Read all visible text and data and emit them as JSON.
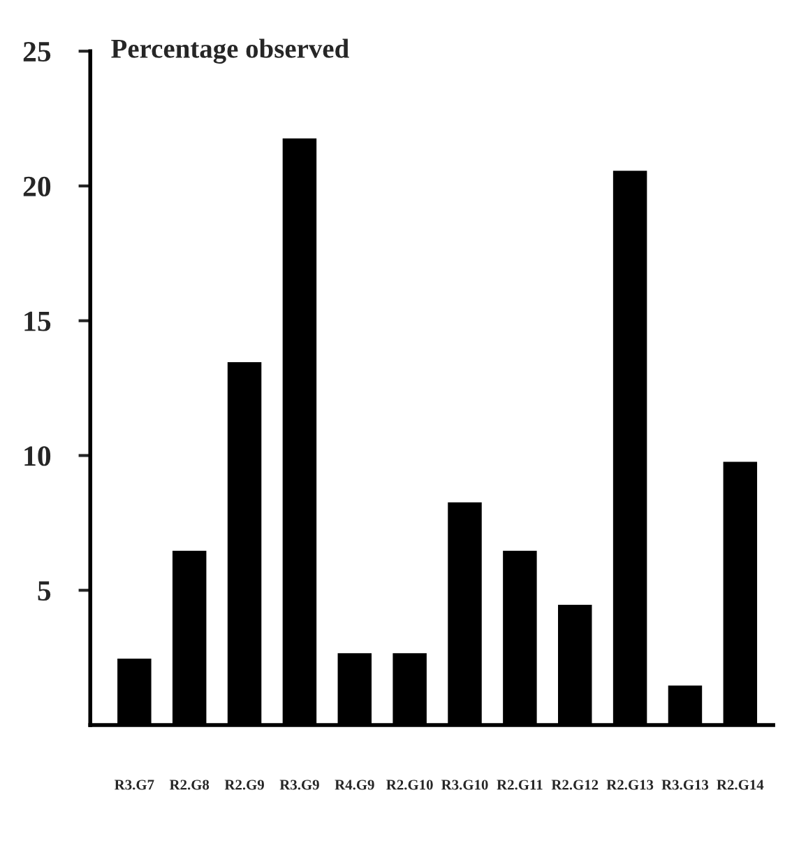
{
  "chart_data": {
    "type": "bar",
    "ylabel": "Percentage observed",
    "categories": [
      "R3.G7",
      "R2.G8",
      "R2.G9",
      "R3.G9",
      "R4.G9",
      "R2.G10",
      "R3.G10",
      "R2.G11",
      "R2.G12",
      "R2.G13",
      "R3.G13",
      "R2.G14"
    ],
    "values": [
      2.5,
      6.5,
      13.5,
      21.8,
      2.7,
      2.7,
      8.3,
      6.5,
      4.5,
      20.6,
      1.5,
      9.8
    ],
    "color": "#000000",
    "ylim": [
      0,
      25
    ],
    "yticks": [
      5,
      10,
      15,
      20,
      25
    ],
    "grid": false,
    "legend": false
  }
}
